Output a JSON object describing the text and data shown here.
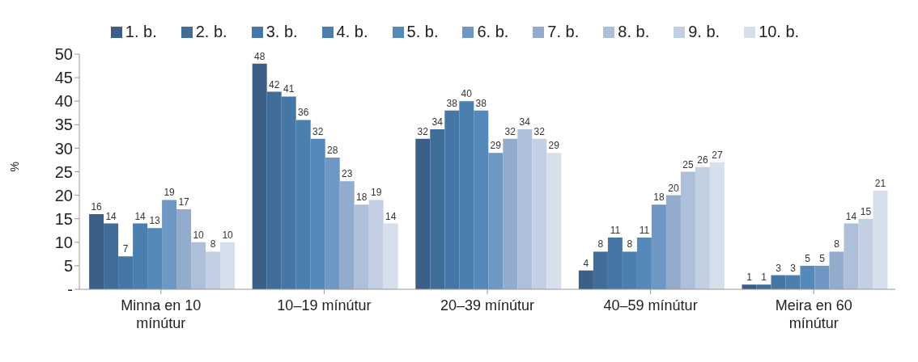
{
  "chart_data": {
    "type": "bar",
    "ylabel": "%",
    "categories": [
      "Minna en 10 mínútur",
      "10–19 mínútur",
      "20–39 mínútur",
      "40–59 mínútur",
      "Meira en 60 mínútur"
    ],
    "series": [
      {
        "name": "1. b.",
        "color": "#3c5f88",
        "values": [
          16,
          48,
          32,
          4,
          1
        ]
      },
      {
        "name": "2. b.",
        "color": "#416d99",
        "values": [
          14,
          42,
          34,
          8,
          1
        ]
      },
      {
        "name": "3. b.",
        "color": "#4676a6",
        "values": [
          7,
          41,
          38,
          11,
          3
        ]
      },
      {
        "name": "4. b.",
        "color": "#4b7fae",
        "values": [
          14,
          36,
          40,
          8,
          3
        ]
      },
      {
        "name": "5. b.",
        "color": "#5589b9",
        "values": [
          13,
          32,
          38,
          11,
          5
        ]
      },
      {
        "name": "6. b.",
        "color": "#6f97c4",
        "values": [
          19,
          28,
          29,
          18,
          5
        ]
      },
      {
        "name": "7. b.",
        "color": "#93abcc",
        "values": [
          17,
          23,
          32,
          20,
          8
        ]
      },
      {
        "name": "8. b.",
        "color": "#adbfd9",
        "values": [
          10,
          18,
          34,
          25,
          14
        ]
      },
      {
        "name": "9. b.",
        "color": "#c3d0e3",
        "values": [
          8,
          19,
          32,
          26,
          15
        ]
      },
      {
        "name": "10. b.",
        "color": "#d6e0ec",
        "values": [
          10,
          14,
          29,
          27,
          21
        ]
      }
    ],
    "ylim": [
      0,
      50
    ],
    "yticks": [
      {
        "value": 0,
        "label": "-"
      },
      5,
      10,
      15,
      20,
      25,
      30,
      35,
      40,
      45,
      50
    ],
    "grid": false,
    "legend": "top",
    "data_labels": true
  }
}
